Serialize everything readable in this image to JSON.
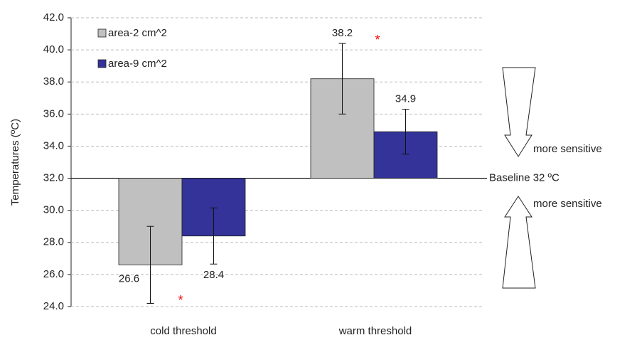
{
  "chart_data": {
    "type": "bar",
    "y_label": "Temperatures (ºC)",
    "categories": [
      "cold threshold",
      "warm threshold"
    ],
    "baseline": 32,
    "baseline_label": "Baseline 32 ºC",
    "series": [
      {
        "name": "area-2 cm^2",
        "color": "#c0c0c0",
        "values": [
          26.6,
          38.2
        ],
        "errors": [
          2.4,
          2.2
        ]
      },
      {
        "name": "area-9 cm^2",
        "color": "#333399",
        "values": [
          28.4,
          34.9
        ],
        "errors": [
          1.75,
          1.4
        ]
      }
    ],
    "ylim": [
      24,
      42
    ],
    "yticks": [
      {
        "value": 24,
        "label": "24.0"
      },
      {
        "value": 26,
        "label": "26.0"
      },
      {
        "value": 28,
        "label": "28.0"
      },
      {
        "value": 30,
        "label": "30.0"
      },
      {
        "value": 32,
        "label": "32.0"
      },
      {
        "value": 34,
        "label": "34.0"
      },
      {
        "value": 36,
        "label": "36.0"
      },
      {
        "value": 38,
        "label": "38.0"
      },
      {
        "value": 40,
        "label": "40.0"
      },
      {
        "value": 42,
        "label": "42.0"
      }
    ],
    "grid": true,
    "significance_marks": [
      "*",
      "*"
    ],
    "significance_color": "#ff0000",
    "sensitivity_labels": [
      "more sensitive",
      "more sensitive"
    ]
  }
}
